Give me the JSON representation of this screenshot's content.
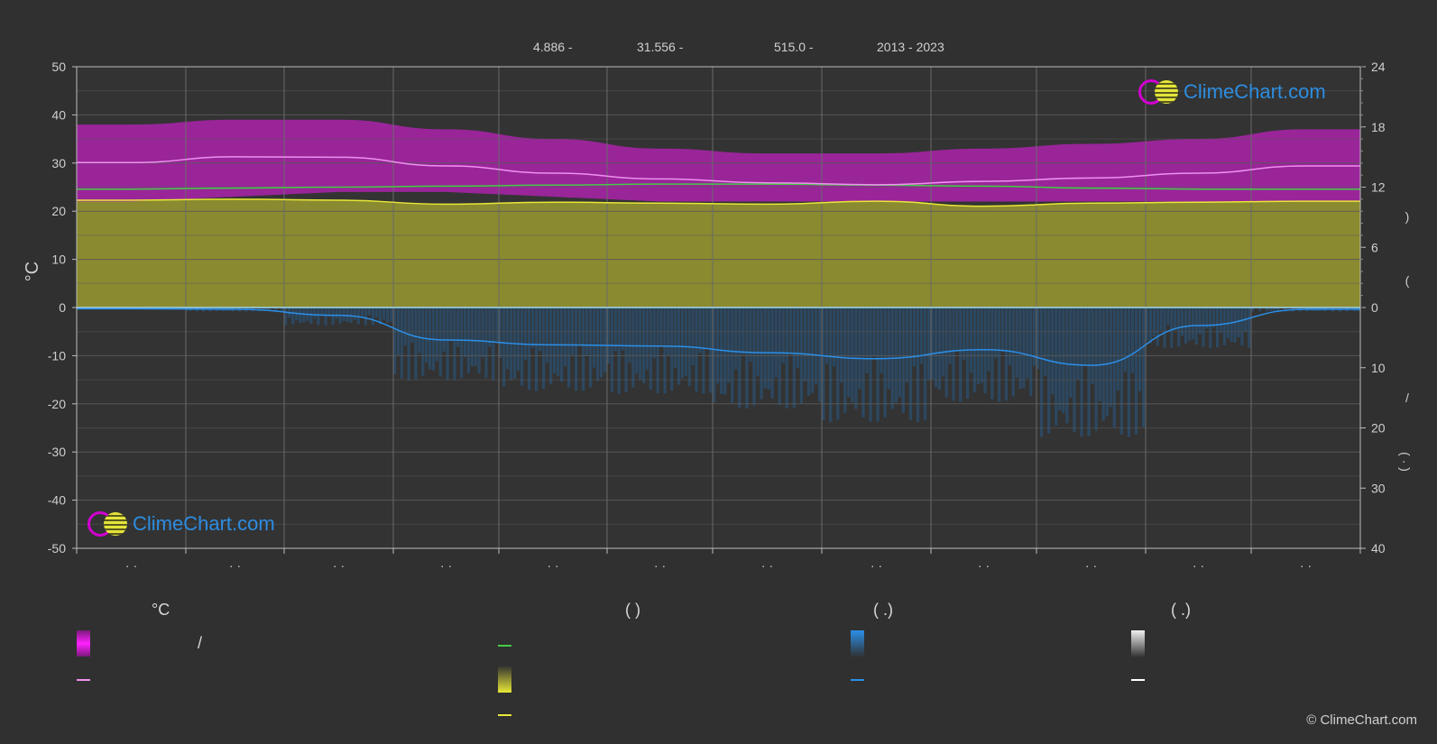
{
  "header": {
    "lat": "4.886 -",
    "lon": "31.556 -",
    "elev": "515.0 -",
    "years": "2013 - 2023"
  },
  "brand": {
    "logo_text": "ClimeChart.com",
    "copyright": "© ClimeChart.com"
  },
  "legend": {
    "col1_head": "°C",
    "col2_head": "(          )",
    "col3_head": "(   .)",
    "col4_head": "(   .)",
    "col1_slash": "/"
  },
  "colors": {
    "background": "#303030",
    "temp_band": "#c020c0",
    "temp_line": "#f090f0",
    "daylight_line": "#44cc44",
    "sunshine_fill": "#9a9a30",
    "sunshine_line": "#e8e838",
    "precip": "#1f6fb8",
    "precip_line": "#2b8fe8",
    "grid": "#5a5a5a",
    "zero_line": "#9fd8f0"
  },
  "chart_data": {
    "type": "area",
    "left_axis": {
      "label": "°C",
      "ylim": [
        -50,
        50
      ],
      "ticks": [
        50,
        40,
        30,
        20,
        10,
        0,
        -10,
        -20,
        -30,
        -40,
        -50
      ]
    },
    "right_axis_top": {
      "ticks": [
        24,
        18,
        12,
        6,
        0
      ],
      "label_fragments": [
        ")",
        "("
      ]
    },
    "right_axis_bottom": {
      "ticks": [
        0,
        10,
        20,
        30,
        40
      ],
      "label_fragments": [
        "/",
        "(   ·   )"
      ]
    },
    "x_tick_labels": [
      "· ·",
      "· ·",
      "· ·",
      "· ·",
      "· ·",
      "· ·",
      "· ·",
      "· ·",
      "· ·",
      "· ·",
      "· ·",
      "· ·"
    ],
    "months": 12,
    "series": [
      {
        "key": "temp_max_band",
        "values": [
          38,
          39,
          39,
          37,
          35,
          33,
          32,
          32,
          33,
          34,
          35,
          37
        ]
      },
      {
        "key": "temp_min_band",
        "values": [
          22,
          23,
          24,
          24,
          23,
          22,
          22,
          22,
          22,
          22,
          22,
          22
        ]
      },
      {
        "key": "mean_temp",
        "values": [
          30.1,
          31.3,
          31.2,
          29.4,
          27.9,
          26.7,
          25.9,
          25.5,
          26.2,
          26.9,
          27.9,
          29.4
        ]
      },
      {
        "key": "daylight_hours",
        "values": [
          11.8,
          11.9,
          12.0,
          12.1,
          12.2,
          12.3,
          12.3,
          12.2,
          12.1,
          11.9,
          11.8,
          11.8
        ]
      },
      {
        "key": "sunshine_hours",
        "values": [
          10.7,
          10.8,
          10.7,
          10.3,
          10.5,
          10.4,
          10.3,
          10.6,
          10.1,
          10.4,
          10.5,
          10.6
        ]
      },
      {
        "key": "monthly_precip_mm",
        "values": [
          0.2,
          0.3,
          1.3,
          5.4,
          6.2,
          6.4,
          7.5,
          8.5,
          7.0,
          9.6,
          3.0,
          0.3
        ]
      }
    ]
  }
}
